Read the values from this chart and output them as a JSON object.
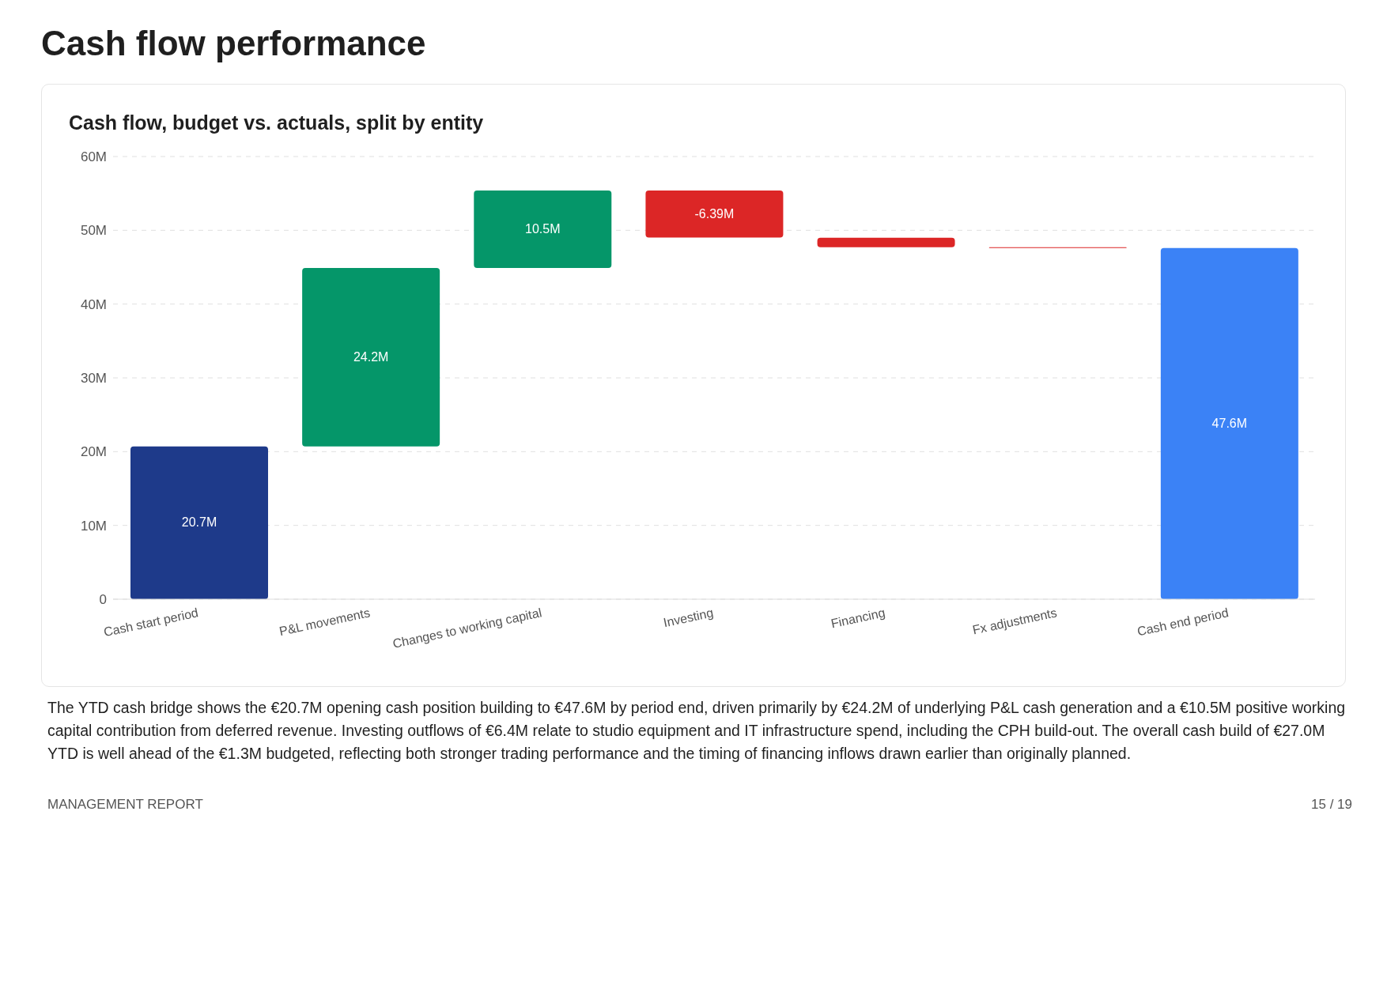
{
  "chart_data": {
    "type": "bar",
    "title": "Cash flow performance",
    "subtitle": "Cash flow, budget vs. actuals, split by entity",
    "categories": [
      "Cash start period",
      "P&L movements",
      "Changes to working capital",
      "Investing",
      "Financing",
      "Fx adjustments",
      "Cash end period"
    ],
    "values": [
      20.7,
      24.2,
      10.5,
      -6.39,
      -1.3,
      -0.1,
      47.6
    ],
    "base": [
      0,
      20.7,
      44.9,
      55.4,
      49.0,
      47.7,
      0
    ],
    "colors": [
      "#1e3a8a",
      "#059669",
      "#059669",
      "#dc2626",
      "#dc2626",
      "#dc2626",
      "#3b82f6"
    ],
    "value_labels": [
      "20.7M",
      "24.2M",
      "10.5M",
      "-6.39M",
      null,
      null,
      "47.6M"
    ],
    "ylim": [
      0,
      60
    ],
    "yticks": [
      {
        "value": 0,
        "label": "0"
      },
      {
        "value": 10,
        "label": "10M"
      },
      {
        "value": 20,
        "label": "20M"
      },
      {
        "value": 30,
        "label": "30M"
      },
      {
        "value": 40,
        "label": "40M"
      },
      {
        "value": 50,
        "label": "50M"
      },
      {
        "value": 60,
        "label": "60M"
      }
    ],
    "grid": "y",
    "legend": false,
    "annotations": [
      "The YTD cash bridge shows the €20.7M opening cash position building to €47.6M by period end, driven primarily by €24.2M of underlying P&L cash generation and a €10.5M positive working capital contribution from deferred revenue. Investing outflows of €6.4M relate to studio equipment and IT infrastructure spend, including the CPH build-out. The overall cash build of €27.0M YTD is well ahead of the €1.3M budgeted, reflecting both stronger trading performance and the timing of financing inflows drawn earlier than originally planned.",
      "MANAGEMENT REPORT",
      "15 / 19"
    ]
  }
}
